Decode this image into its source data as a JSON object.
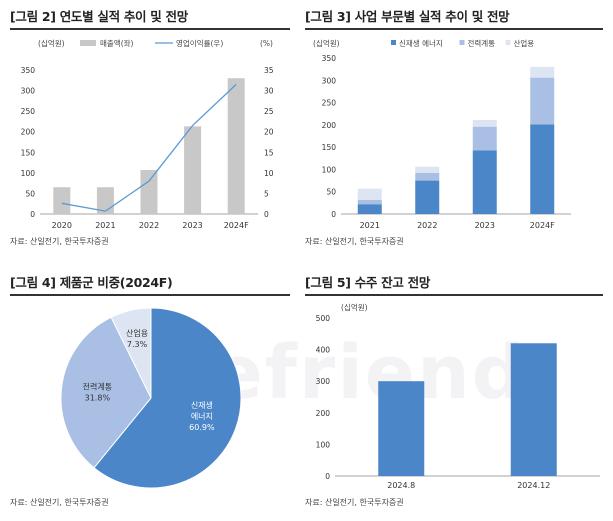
{
  "watermark": "truefriend",
  "chart_data": [
    {
      "id": "fig2",
      "type": "bar+line",
      "title": "[그림 2] 연도별 실적 추이 및 전망",
      "left_unit": "(십억원)",
      "right_unit": "(%)",
      "categories": [
        "2020",
        "2021",
        "2022",
        "2023",
        "2024F"
      ],
      "series": [
        {
          "name": "매출액(좌)",
          "type": "bar",
          "axis": "left",
          "color": "#c8c8c8",
          "values": [
            65,
            65,
            107,
            213,
            330
          ]
        },
        {
          "name": "영업이익률(우)",
          "type": "line",
          "axis": "right",
          "color": "#5b9bd5",
          "values": [
            2.6,
            0.7,
            8.0,
            21.5,
            31.5
          ]
        }
      ],
      "ylim_left": [
        0,
        350
      ],
      "yticks_left": [
        0,
        50,
        100,
        150,
        200,
        250,
        300,
        350
      ],
      "ylim_right": [
        0,
        35
      ],
      "yticks_right": [
        0,
        5,
        10,
        15,
        20,
        25,
        30,
        35
      ],
      "source": "자료: 산일전기, 한국투자증권"
    },
    {
      "id": "fig3",
      "type": "stacked-bar",
      "title": "[그림 3] 사업 부문별 실적 추이 및 전망",
      "unit": "(십억원)",
      "categories": [
        "2021",
        "2022",
        "2023",
        "2024F"
      ],
      "series": [
        {
          "name": "신재생 에너지",
          "color": "#4a86c8",
          "values": [
            22,
            75,
            143,
            201
          ]
        },
        {
          "name": "전력계통",
          "color": "#a9bfe3",
          "values": [
            10,
            17,
            53,
            105
          ]
        },
        {
          "name": "산업용",
          "color": "#dde5f3",
          "values": [
            25,
            14,
            15,
            24
          ]
        }
      ],
      "ylim": [
        0,
        350
      ],
      "yticks": [
        0,
        50,
        100,
        150,
        200,
        250,
        300,
        350
      ],
      "source": "자료: 산일전기, 한국투자증권"
    },
    {
      "id": "fig4",
      "type": "pie",
      "title": "[그림 4] 제품군 비중(2024F)",
      "slices": [
        {
          "name": "신재생 에너지",
          "line1": "신재생",
          "line2": "에너지",
          "value": 60.9,
          "label": "60.9%",
          "color": "#4a86c8",
          "text_color": "#ffffff"
        },
        {
          "name": "전력계통",
          "line1": "전력계통",
          "value": 31.8,
          "label": "31.8%",
          "color": "#a9bfe3",
          "text_color": "#333333"
        },
        {
          "name": "산업용",
          "line1": "산업용",
          "value": 7.3,
          "label": "7.3%",
          "color": "#dde5f3",
          "text_color": "#333333"
        }
      ],
      "source": "자료: 산일전기, 한국투자증권"
    },
    {
      "id": "fig5",
      "type": "bar",
      "title": "[그림 5] 수주 잔고 전망",
      "unit": "(십억원)",
      "categories": [
        "2024.8",
        "2024.12"
      ],
      "values": [
        300,
        420
      ],
      "color": "#4a86c8",
      "ylim": [
        0,
        500
      ],
      "yticks": [
        0,
        100,
        200,
        300,
        400,
        500
      ],
      "source": "자료: 산일전기, 한국투자증권"
    }
  ]
}
